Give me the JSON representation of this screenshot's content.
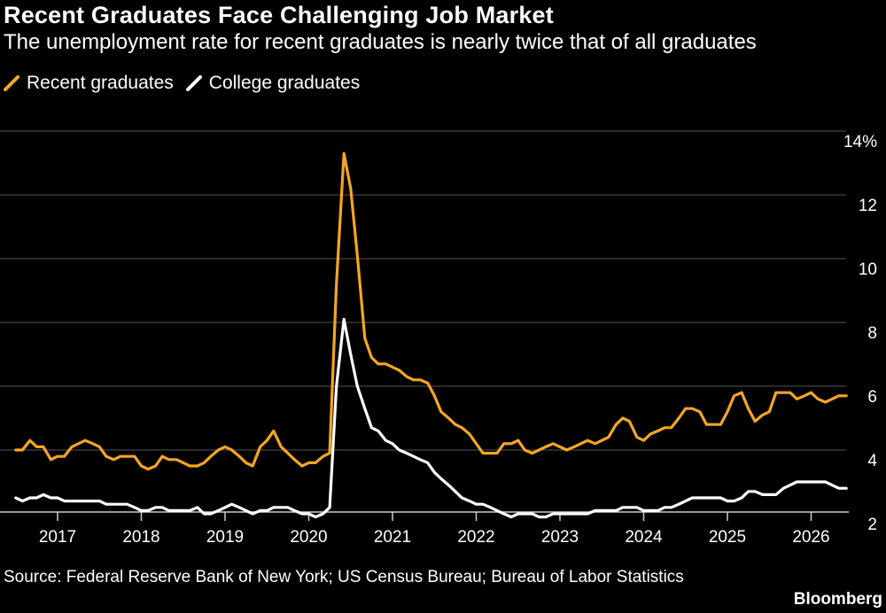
{
  "title": "Recent Graduates Face Challenging Job Market",
  "subtitle": "The unemployment rate for recent graduates is nearly twice that of all graduates",
  "source": "Source: Federal Reserve Bank of New York; US Census Bureau; Bureau of Labor Statistics",
  "brand": "Bloomberg",
  "colors": {
    "recent": "#f5a623",
    "college": "#ffffff",
    "grid": "#555555"
  },
  "chart_data": {
    "type": "line",
    "title": "Recent Graduates Face Challenging Job Market",
    "subtitle": "The unemployment rate for recent graduates is nearly twice that of all graduates",
    "xlabel": "",
    "ylabel": "",
    "ylim": [
      2,
      14
    ],
    "xlim": [
      2016.5,
      2026.65
    ],
    "y_ticks": [
      2,
      4,
      6,
      8,
      10,
      12,
      14
    ],
    "y_tick_labels": [
      "2",
      "4",
      "6",
      "8",
      "10",
      "12",
      "14%"
    ],
    "x_ticks": [
      2017,
      2018,
      2019,
      2020,
      2021,
      2022,
      2023,
      2024,
      2025,
      2026
    ],
    "x_tick_labels": [
      "2017",
      "2018",
      "2019",
      "2020",
      "2021",
      "2022",
      "2023",
      "2024",
      "2025",
      "2026"
    ],
    "grid": true,
    "legend": "top-left",
    "series": [
      {
        "name": "Recent graduates",
        "color": "#f5a623",
        "x": [
          2016.5,
          2016.58,
          2016.67,
          2016.75,
          2016.83,
          2016.92,
          2017.0,
          2017.08,
          2017.17,
          2017.25,
          2017.33,
          2017.42,
          2017.5,
          2017.58,
          2017.67,
          2017.75,
          2017.83,
          2017.92,
          2018.0,
          2018.08,
          2018.17,
          2018.25,
          2018.33,
          2018.42,
          2018.5,
          2018.58,
          2018.67,
          2018.75,
          2018.83,
          2018.92,
          2019.0,
          2019.08,
          2019.17,
          2019.25,
          2019.33,
          2019.42,
          2019.5,
          2019.58,
          2019.67,
          2019.75,
          2019.83,
          2019.92,
          2020.0,
          2020.08,
          2020.17,
          2020.25,
          2020.33,
          2020.42,
          2020.5,
          2020.58,
          2020.67,
          2020.75,
          2020.83,
          2020.92,
          2021.0,
          2021.08,
          2021.17,
          2021.25,
          2021.33,
          2021.42,
          2021.5,
          2021.58,
          2021.67,
          2021.75,
          2021.83,
          2021.92,
          2022.0,
          2022.08,
          2022.17,
          2022.25,
          2022.33,
          2022.42,
          2022.5,
          2022.58,
          2022.67,
          2022.75,
          2022.83,
          2022.92,
          2023.0,
          2023.08,
          2023.17,
          2023.25,
          2023.33,
          2023.42,
          2023.5,
          2023.58,
          2023.67,
          2023.75,
          2023.83,
          2023.92,
          2024.0,
          2024.08,
          2024.17,
          2024.25,
          2024.33,
          2024.42,
          2024.5,
          2024.58,
          2024.67,
          2024.75,
          2024.83,
          2024.92,
          2025.0,
          2025.08,
          2025.17,
          2025.25,
          2025.33,
          2025.42,
          2025.5,
          2025.58,
          2025.67,
          2025.75,
          2025.83,
          2025.92,
          2026.0,
          2026.08,
          2026.17,
          2026.25,
          2026.33,
          2026.42
        ],
        "values": [
          4.0,
          4.0,
          4.3,
          4.1,
          4.1,
          3.7,
          3.8,
          3.8,
          4.1,
          4.2,
          4.3,
          4.2,
          4.1,
          3.8,
          3.7,
          3.8,
          3.8,
          3.8,
          3.5,
          3.4,
          3.5,
          3.8,
          3.7,
          3.7,
          3.6,
          3.5,
          3.5,
          3.6,
          3.8,
          4.0,
          4.1,
          4.0,
          3.8,
          3.6,
          3.5,
          4.1,
          4.3,
          4.6,
          4.1,
          3.9,
          3.7,
          3.5,
          3.6,
          3.6,
          3.8,
          3.9,
          9.2,
          13.3,
          12.2,
          10.1,
          7.5,
          6.9,
          6.7,
          6.7,
          6.6,
          6.5,
          6.3,
          6.2,
          6.2,
          6.1,
          5.7,
          5.2,
          5.0,
          4.8,
          4.7,
          4.5,
          4.2,
          3.9,
          3.9,
          3.9,
          4.2,
          4.2,
          4.3,
          4.0,
          3.9,
          4.0,
          4.1,
          4.2,
          4.1,
          4.0,
          4.1,
          4.2,
          4.3,
          4.2,
          4.3,
          4.4,
          4.8,
          5.0,
          4.9,
          4.4,
          4.3,
          4.5,
          4.6,
          4.7,
          4.7,
          5.0,
          5.3,
          5.3,
          5.2,
          4.8,
          4.8,
          4.8,
          5.2,
          5.7,
          5.8,
          5.3,
          4.9,
          5.1,
          5.2,
          5.8,
          5.8,
          5.8,
          5.6,
          5.7,
          5.8,
          5.6,
          5.5,
          5.6,
          5.7,
          5.7
        ]
      },
      {
        "name": "College graduates",
        "color": "#ffffff",
        "x": [
          2016.5,
          2016.58,
          2016.67,
          2016.75,
          2016.83,
          2016.92,
          2017.0,
          2017.08,
          2017.17,
          2017.25,
          2017.33,
          2017.42,
          2017.5,
          2017.58,
          2017.67,
          2017.75,
          2017.83,
          2017.92,
          2018.0,
          2018.08,
          2018.17,
          2018.25,
          2018.33,
          2018.42,
          2018.5,
          2018.58,
          2018.67,
          2018.75,
          2018.83,
          2018.92,
          2019.0,
          2019.08,
          2019.17,
          2019.25,
          2019.33,
          2019.42,
          2019.5,
          2019.58,
          2019.67,
          2019.75,
          2019.83,
          2019.92,
          2020.0,
          2020.08,
          2020.17,
          2020.25,
          2020.33,
          2020.42,
          2020.5,
          2020.58,
          2020.67,
          2020.75,
          2020.83,
          2020.92,
          2021.0,
          2021.08,
          2021.17,
          2021.25,
          2021.33,
          2021.42,
          2021.5,
          2021.58,
          2021.67,
          2021.75,
          2021.83,
          2021.92,
          2022.0,
          2022.08,
          2022.17,
          2022.25,
          2022.33,
          2022.42,
          2022.5,
          2022.58,
          2022.67,
          2022.75,
          2022.83,
          2022.92,
          2023.0,
          2023.08,
          2023.17,
          2023.25,
          2023.33,
          2023.42,
          2023.5,
          2023.58,
          2023.67,
          2023.75,
          2023.83,
          2023.92,
          2024.0,
          2024.08,
          2024.17,
          2024.25,
          2024.33,
          2024.42,
          2024.5,
          2024.58,
          2024.67,
          2024.75,
          2024.83,
          2024.92,
          2025.0,
          2025.08,
          2025.17,
          2025.25,
          2025.33,
          2025.42,
          2025.5,
          2025.58,
          2025.67,
          2025.75,
          2025.83,
          2025.92,
          2026.0,
          2026.08,
          2026.17,
          2026.25,
          2026.33,
          2026.42
        ],
        "values": [
          2.5,
          2.4,
          2.5,
          2.5,
          2.6,
          2.5,
          2.5,
          2.4,
          2.4,
          2.4,
          2.4,
          2.4,
          2.4,
          2.3,
          2.3,
          2.3,
          2.3,
          2.2,
          2.1,
          2.1,
          2.2,
          2.2,
          2.1,
          2.1,
          2.1,
          2.1,
          2.2,
          2.0,
          2.0,
          2.1,
          2.2,
          2.3,
          2.2,
          2.1,
          2.0,
          2.1,
          2.1,
          2.2,
          2.2,
          2.2,
          2.1,
          2.0,
          2.0,
          1.9,
          2.0,
          2.2,
          6.0,
          8.1,
          7.0,
          6.0,
          5.3,
          4.7,
          4.6,
          4.3,
          4.2,
          4.0,
          3.9,
          3.8,
          3.7,
          3.6,
          3.3,
          3.1,
          2.9,
          2.7,
          2.5,
          2.4,
          2.3,
          2.3,
          2.2,
          2.1,
          2.0,
          1.9,
          2.0,
          2.0,
          2.0,
          1.9,
          1.9,
          2.0,
          2.0,
          2.0,
          2.0,
          2.0,
          2.0,
          2.1,
          2.1,
          2.1,
          2.1,
          2.2,
          2.2,
          2.2,
          2.1,
          2.1,
          2.1,
          2.2,
          2.2,
          2.3,
          2.4,
          2.5,
          2.5,
          2.5,
          2.5,
          2.5,
          2.4,
          2.4,
          2.5,
          2.7,
          2.7,
          2.6,
          2.6,
          2.6,
          2.8,
          2.9,
          3.0,
          3.0,
          3.0,
          3.0,
          3.0,
          2.9,
          2.8,
          2.8
        ]
      }
    ]
  }
}
